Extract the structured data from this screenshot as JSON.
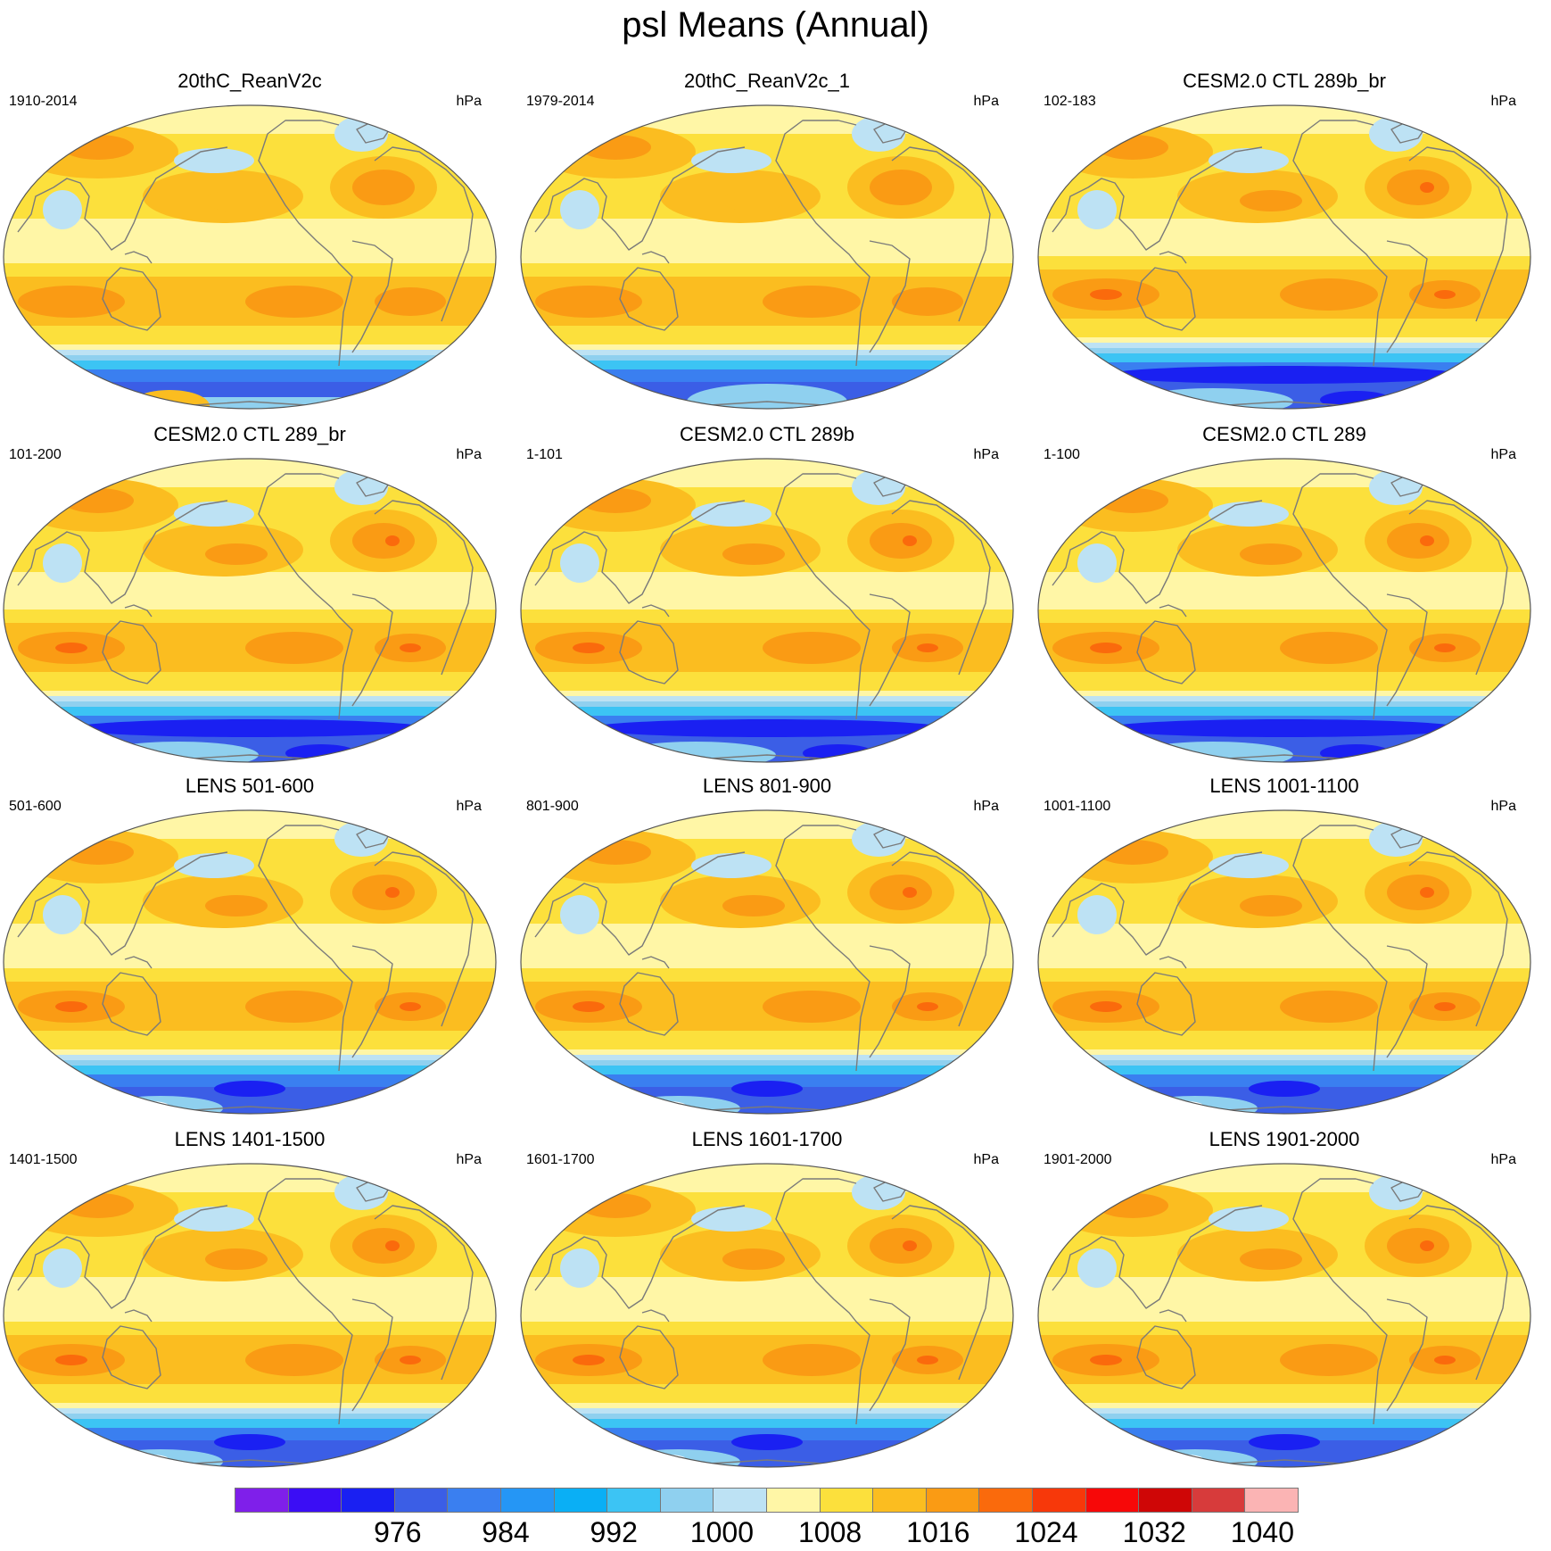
{
  "title": "psl Means (Annual)",
  "units": "hPa",
  "panels": [
    {
      "title": "20thC_ReanV2c",
      "period": "1910-2014",
      "variant": "rean"
    },
    {
      "title": "20thC_ReanV2c_1",
      "period": "1979-2014",
      "variant": "rean2"
    },
    {
      "title": "CESM2.0 CTL 289b_br",
      "period": "102-183",
      "variant": "model"
    },
    {
      "title": "CESM2.0 CTL 289_br",
      "period": "101-200",
      "variant": "model"
    },
    {
      "title": "CESM2.0 CTL 289b",
      "period": "1-101",
      "variant": "model"
    },
    {
      "title": "CESM2.0 CTL 289",
      "period": "1-100",
      "variant": "model"
    },
    {
      "title": "LENS 501-600",
      "period": "501-600",
      "variant": "lens"
    },
    {
      "title": "LENS 801-900",
      "period": "801-900",
      "variant": "lens"
    },
    {
      "title": "LENS 1001-1100",
      "period": "1001-1100",
      "variant": "lens"
    },
    {
      "title": "LENS 1401-1500",
      "period": "1401-1500",
      "variant": "lens"
    },
    {
      "title": "LENS 1601-1700",
      "period": "1601-1700",
      "variant": "lens"
    },
    {
      "title": "LENS 1901-2000",
      "period": "1901-2000",
      "variant": "lens"
    }
  ],
  "colorbar": {
    "colors": [
      "#7f1fea",
      "#3b0df5",
      "#1a20f2",
      "#3b5ee6",
      "#3a7ff0",
      "#2596f5",
      "#0aaff5",
      "#3cc4f4",
      "#8fd0ef",
      "#bde2f4",
      "#fff6a6",
      "#fce03c",
      "#fbbd20",
      "#fa9b14",
      "#fa6a0c",
      "#f7380a",
      "#f70808",
      "#cf0606",
      "#d73b3b",
      "#fbb4b4"
    ],
    "labels": [
      "976",
      "984",
      "992",
      "1000",
      "1008",
      "1016",
      "1024",
      "1032",
      "1040"
    ],
    "label_boundaries": [
      2,
      4,
      6,
      8,
      10,
      12,
      14,
      16,
      18
    ]
  },
  "palette": {
    "pale_yellow": "#fff6a6",
    "yellow": "#fce03c",
    "gold": "#fbbd20",
    "orange": "#fa9b14",
    "red_orange": "#fa6a0c",
    "pale_blue": "#bde2f4",
    "light_blue": "#8fd0ef",
    "mid_blue": "#3a7ff0",
    "blue": "#3b5ee6",
    "deep_blue": "#1a20f2",
    "coast": "#7a7a7a",
    "frame": "#555555"
  }
}
